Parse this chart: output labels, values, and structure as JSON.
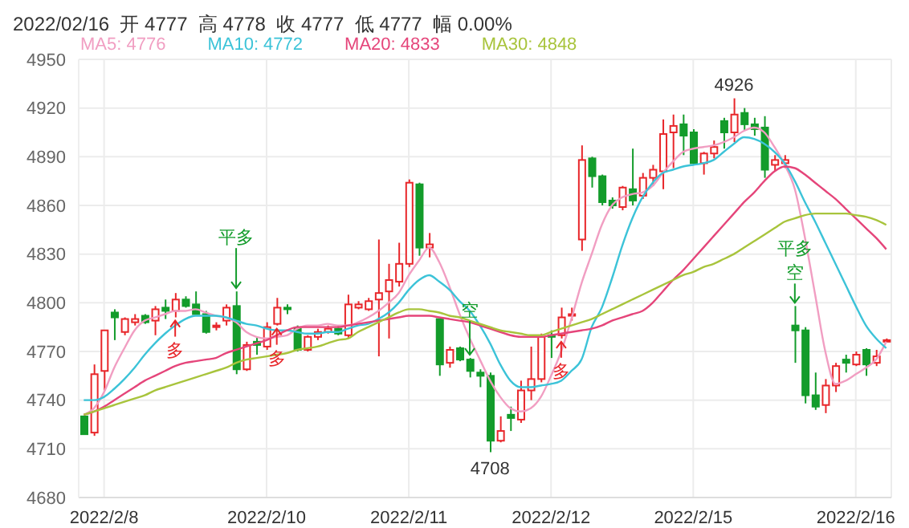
{
  "chart_data": {
    "type": "candlestick",
    "title": "2022/02/16  开 4777  高 4778  收 4777  低 4777  幅 0.00%",
    "categories": [
      null,
      null,
      "2022/2/8",
      null,
      null,
      null,
      null,
      null,
      null,
      null,
      null,
      null,
      null,
      null,
      null,
      null,
      null,
      null,
      "2022/2/10",
      null,
      null,
      null,
      null,
      null,
      null,
      null,
      null,
      null,
      null,
      null,
      null,
      null,
      "2022/2/11",
      null,
      null,
      null,
      null,
      null,
      null,
      null,
      null,
      null,
      null,
      null,
      null,
      null,
      "2022/2/12",
      null,
      null,
      null,
      null,
      null,
      null,
      null,
      null,
      null,
      null,
      null,
      null,
      null,
      "2022/2/15",
      null,
      null,
      null,
      null,
      null,
      null,
      null,
      null,
      null,
      null,
      null,
      null,
      null,
      null,
      null,
      "2022/2/16",
      null,
      null,
      null
    ],
    "ohlc": [
      [
        4730,
        4730,
        4719,
        4719
      ],
      [
        4720,
        4762,
        4718,
        4756
      ],
      [
        4758,
        4783,
        4746,
        4783
      ],
      [
        4794,
        4796,
        4777,
        4791
      ],
      [
        4782,
        4791,
        4780,
        4790
      ],
      [
        4788,
        4793,
        4786,
        4790
      ],
      [
        4792,
        4793,
        4787,
        4788
      ],
      [
        4789,
        4798,
        4780,
        4796
      ],
      [
        4797,
        4802,
        4790,
        4795
      ],
      [
        4795,
        4806,
        4791,
        4802
      ],
      [
        4802,
        4804,
        4797,
        4798
      ],
      [
        4799,
        4807,
        4793,
        4793
      ],
      [
        4793,
        4795,
        4781,
        4782
      ],
      [
        4785,
        4788,
        4783,
        4786
      ],
      [
        4789,
        4799,
        4786,
        4797
      ],
      [
        4798,
        4807,
        4756,
        4759
      ],
      [
        4759,
        4776,
        4758,
        4774
      ],
      [
        4776,
        4779,
        4768,
        4774
      ],
      [
        4773,
        4788,
        4771,
        4785
      ],
      [
        4787,
        4803,
        4786,
        4797
      ],
      [
        4797,
        4799,
        4793,
        4796
      ],
      [
        4784,
        4786,
        4770,
        4771
      ],
      [
        4771,
        4780,
        4770,
        4779
      ],
      [
        4779,
        4784,
        4777,
        4782
      ],
      [
        4782,
        4786,
        4781,
        4784
      ],
      [
        4784,
        4786,
        4780,
        4781
      ],
      [
        4780,
        4805,
        4778,
        4799
      ],
      [
        4797,
        4801,
        4796,
        4799
      ],
      [
        4796,
        4803,
        4795,
        4801
      ],
      [
        4802,
        4839,
        4767,
        4806
      ],
      [
        4807,
        4824,
        4778,
        4814
      ],
      [
        4813,
        4837,
        4810,
        4824
      ],
      [
        4824,
        4876,
        4822,
        4874
      ],
      [
        4873,
        4874,
        4829,
        4834
      ],
      [
        4834,
        4843,
        4828,
        4836
      ],
      [
        4790,
        4790,
        4755,
        4762
      ],
      [
        4763,
        4773,
        4760,
        4771
      ],
      [
        4772,
        4773,
        4764,
        4765
      ],
      [
        4765,
        4766,
        4754,
        4758
      ],
      [
        4757,
        4759,
        4748,
        4755
      ],
      [
        4755,
        4757,
        4708,
        4715
      ],
      [
        4715,
        4730,
        4714,
        4721
      ],
      [
        4731,
        4736,
        4721,
        4729
      ],
      [
        4728,
        4752,
        4726,
        4746
      ],
      [
        4746,
        4773,
        4740,
        4753
      ],
      [
        4753,
        4781,
        4751,
        4779
      ],
      [
        4780,
        4783,
        4766,
        4779
      ],
      [
        4780,
        4797,
        4778,
        4791
      ],
      [
        4792,
        4797,
        4789,
        4793
      ],
      [
        4839,
        4897,
        4832,
        4888
      ],
      [
        4889,
        4890,
        4871,
        4878
      ],
      [
        4878,
        4879,
        4860,
        4862
      ],
      [
        4863,
        4865,
        4858,
        4860
      ],
      [
        4859,
        4872,
        4857,
        4871
      ],
      [
        4870,
        4895,
        4860,
        4863
      ],
      [
        4866,
        4880,
        4864,
        4877
      ],
      [
        4877,
        4885,
        4872,
        4882
      ],
      [
        4881,
        4913,
        4870,
        4904
      ],
      [
        4905,
        4916,
        4883,
        4909
      ],
      [
        4910,
        4916,
        4891,
        4903
      ],
      [
        4905,
        4907,
        4885,
        4886
      ],
      [
        4886,
        4893,
        4879,
        4892
      ],
      [
        4892,
        4900,
        4889,
        4896
      ],
      [
        4912,
        4914,
        4895,
        4905
      ],
      [
        4905,
        4926,
        4899,
        4916
      ],
      [
        4917,
        4920,
        4906,
        4910
      ],
      [
        4910,
        4914,
        4903,
        4907
      ],
      [
        4908,
        4915,
        4877,
        4882
      ],
      [
        4885,
        4891,
        4881,
        4888
      ],
      [
        4886,
        4891,
        4883,
        4888
      ],
      [
        4786,
        4798,
        4763,
        4783
      ],
      [
        4783,
        4785,
        4738,
        4743
      ],
      [
        4743,
        4757,
        4734,
        4736
      ],
      [
        4737,
        4753,
        4732,
        4749
      ],
      [
        4749,
        4763,
        4745,
        4761
      ],
      [
        4765,
        4768,
        4757,
        4763
      ],
      [
        4762,
        4770,
        4761,
        4768
      ],
      [
        4771,
        4772,
        4755,
        4762
      ],
      [
        4763,
        4771,
        4761,
        4767
      ],
      [
        4777,
        4778,
        4777,
        4777
      ]
    ],
    "series": [
      {
        "name": "MA5: 4776",
        "type": "line",
        "color": "#f19ec2",
        "values": [
          4731,
          4735,
          4745,
          4760,
          4772,
          4783,
          4789,
          4791,
          4793,
          4795,
          4795,
          4796,
          4794,
          4792,
          4791,
          4788,
          4782,
          4779,
          4778,
          4779,
          4780,
          4784,
          4786,
          4786,
          4787,
          4786,
          4786,
          4788,
          4791,
          4795,
          4800,
          4806,
          4817,
          4826,
          4834,
          4825,
          4810,
          4793,
          4778,
          4765,
          4752,
          4742,
          4735,
          4733,
          4735,
          4742,
          4755,
          4770,
          4790,
          4812,
          4830,
          4848,
          4860,
          4865,
          4867,
          4868,
          4872,
          4880,
          4887,
          4893,
          4895,
          4896,
          4897,
          4899,
          4902,
          4906,
          4908,
          4905,
          4896,
          4885,
          4870,
          4840,
          4805,
          4770,
          4750,
          4752,
          4756,
          4760,
          4765,
          4776
        ]
      },
      {
        "name": "MA10: 4772",
        "type": "line",
        "color": "#3cc3d8",
        "values": [
          4740,
          4740,
          4742,
          4747,
          4753,
          4760,
          4768,
          4775,
          4781,
          4786,
          4790,
          4792,
          4792,
          4792,
          4791,
          4789,
          4787,
          4786,
          4784,
          4783,
          4783,
          4782,
          4781,
          4781,
          4782,
          4782,
          4784,
          4786,
          4787,
          4790,
          4794,
          4800,
          4808,
          4814,
          4817,
          4813,
          4808,
          4801,
          4795,
          4786,
          4775,
          4762,
          4752,
          4748,
          4748,
          4749,
          4750,
          4752,
          4758,
          4765,
          4785,
          4797,
          4815,
          4835,
          4852,
          4865,
          4874,
          4880,
          4882,
          4884,
          4885,
          4886,
          4888,
          4893,
          4898,
          4902,
          4901,
          4898,
          4893,
          4886,
          4875,
          4862,
          4850,
          4837,
          4824,
          4811,
          4798,
          4786,
          4778,
          4772
        ]
      },
      {
        "name": "MA20: 4833",
        "type": "line",
        "color": "#e5457a",
        "values": [
          4731,
          4733,
          4736,
          4740,
          4744,
          4748,
          4752,
          4755,
          4758,
          4761,
          4763,
          4764,
          4765,
          4766,
          4769,
          4771,
          4773,
          4775,
          4777,
          4780,
          4783,
          4785,
          4785,
          4785,
          4785,
          4785,
          4786,
          4787,
          4788,
          4789,
          4790,
          4791,
          4792,
          4792,
          4792,
          4791,
          4790,
          4789,
          4788,
          4786,
          4784,
          4782,
          4780,
          4779,
          4779,
          4779,
          4780,
          4781,
          4782,
          4783,
          4784,
          4786,
          4789,
          4791,
          4793,
          4795,
          4800,
          4807,
          4814,
          4820,
          4827,
          4834,
          4841,
          4848,
          4855,
          4862,
          4868,
          4875,
          4881,
          4884,
          4883,
          4879,
          4874,
          4869,
          4864,
          4858,
          4852,
          4846,
          4840,
          4833
        ]
      },
      {
        "name": "MA30: 4848",
        "type": "line",
        "color": "#a8c43c",
        "values": [
          4731,
          4733,
          4735,
          4737,
          4739,
          4741,
          4743,
          4746,
          4748,
          4750,
          4752,
          4754,
          4756,
          4758,
          4760,
          4763,
          4765,
          4766,
          4767,
          4768,
          4769,
          4771,
          4772,
          4773,
          4775,
          4777,
          4778,
          4782,
          4785,
          4788,
          4791,
          4794,
          4796,
          4796,
          4795,
          4794,
          4792,
          4791,
          4789,
          4787,
          4785,
          4783,
          4782,
          4781,
          4780,
          4780,
          4782,
          4784,
          4786,
          4788,
          4790,
          4793,
          4796,
          4799,
          4802,
          4805,
          4808,
          4811,
          4814,
          4817,
          4819,
          4822,
          4824,
          4827,
          4830,
          4834,
          4838,
          4842,
          4846,
          4850,
          4852,
          4854,
          4855,
          4855,
          4855,
          4855,
          4854,
          4853,
          4851,
          4848
        ]
      }
    ],
    "ylim": [
      4680,
      4950
    ],
    "yticks": [
      4680,
      4710,
      4740,
      4770,
      4800,
      4830,
      4860,
      4890,
      4920,
      4950
    ],
    "grid": true,
    "legend": "top",
    "annotations": [
      {
        "text": "4926",
        "y": 4926
      },
      {
        "text": "4708",
        "y": 4708
      },
      "平多",
      "多",
      "多",
      "空",
      "多",
      "平多",
      "空"
    ]
  }
}
